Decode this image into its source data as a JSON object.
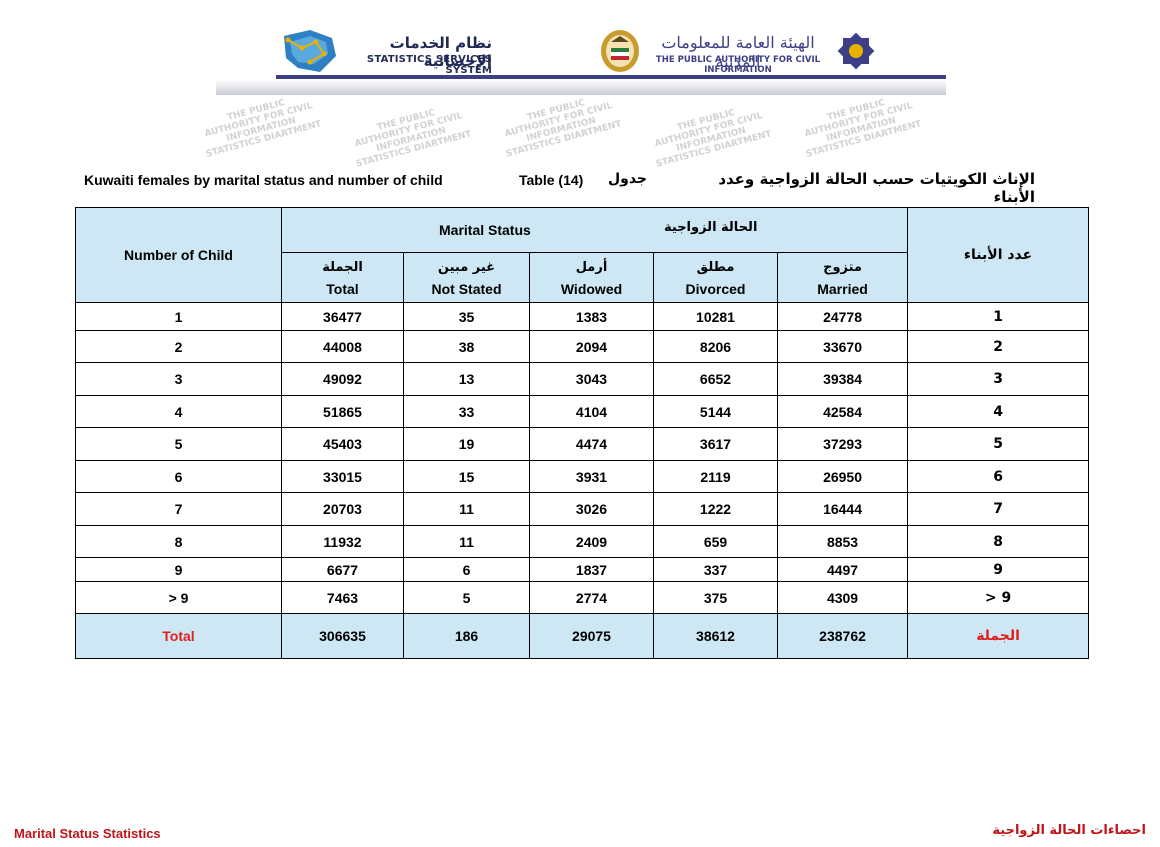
{
  "header": {
    "sss_arabic": "نظام الخدمات الإحصائية",
    "sss_english": "STATISTICS SERVICES SYSTEM",
    "paci_arabic": "الهيئة العامة للمعلومات المدنية",
    "paci_english": "THE PUBLIC AUTHORITY FOR CIVIL INFORMATION"
  },
  "watermark_text": "THE PUBLIC AUTHORITY FOR CIVIL INFORMATION STATISTICS DIARTMENT",
  "title": {
    "english": "Kuwaiti females by marital status and number of child",
    "table_label": "Table (14)",
    "table_label_ar": "جدول",
    "arabic": "الإناث الكويتيات حسب الحالة الزواجية وعدد الأبناء"
  },
  "table": {
    "col_number_en": "Number of Child",
    "col_number_ar": "عدد الأبناء",
    "marital_status_en": "Marital Status",
    "marital_status_ar": "الحالة الزواجية",
    "columns": [
      {
        "ar": "الجملة",
        "en": "Total"
      },
      {
        "ar": "غير مبين",
        "en": "Not Stated"
      },
      {
        "ar": "أرمل",
        "en": "Widowed"
      },
      {
        "ar": "مطلق",
        "en": "Divorced"
      },
      {
        "ar": "متزوج",
        "en": "Married"
      }
    ],
    "rows": [
      {
        "label_en": "1",
        "values": [
          "36477",
          "35",
          "1383",
          "10281",
          "24778"
        ],
        "label_ar": "1"
      },
      {
        "label_en": "2",
        "values": [
          "44008",
          "38",
          "2094",
          "8206",
          "33670"
        ],
        "label_ar": "2"
      },
      {
        "label_en": "3",
        "values": [
          "49092",
          "13",
          "3043",
          "6652",
          "39384"
        ],
        "label_ar": "3"
      },
      {
        "label_en": "4",
        "values": [
          "51865",
          "33",
          "4104",
          "5144",
          "42584"
        ],
        "label_ar": "4"
      },
      {
        "label_en": "5",
        "values": [
          "45403",
          "19",
          "4474",
          "3617",
          "37293"
        ],
        "label_ar": "5"
      },
      {
        "label_en": "6",
        "values": [
          "33015",
          "15",
          "3931",
          "2119",
          "26950"
        ],
        "label_ar": "6"
      },
      {
        "label_en": "7",
        "values": [
          "20703",
          "11",
          "3026",
          "1222",
          "16444"
        ],
        "label_ar": "7"
      },
      {
        "label_en": "8",
        "values": [
          "11932",
          "11",
          "2409",
          "659",
          "8853"
        ],
        "label_ar": "8"
      },
      {
        "label_en": "9",
        "values": [
          "6677",
          "6",
          "1837",
          "337",
          "4497"
        ],
        "label_ar": "9"
      },
      {
        "label_en": "> 9",
        "values": [
          "7463",
          "5",
          "2774",
          "375",
          "4309"
        ],
        "label_ar": "9 <"
      }
    ],
    "total": {
      "label_en": "Total",
      "values": [
        "306635",
        "186",
        "29075",
        "38612",
        "238762"
      ],
      "label_ar": "الجملة"
    }
  },
  "footer": {
    "left": "Marital Status Statistics",
    "right": "احصاءات الحالة الزواجية"
  },
  "colors": {
    "header_fill": "#cde8f4",
    "total_label": "#e0201f",
    "footer_text": "#c0141a",
    "brand_navy": "#3c3f86"
  }
}
